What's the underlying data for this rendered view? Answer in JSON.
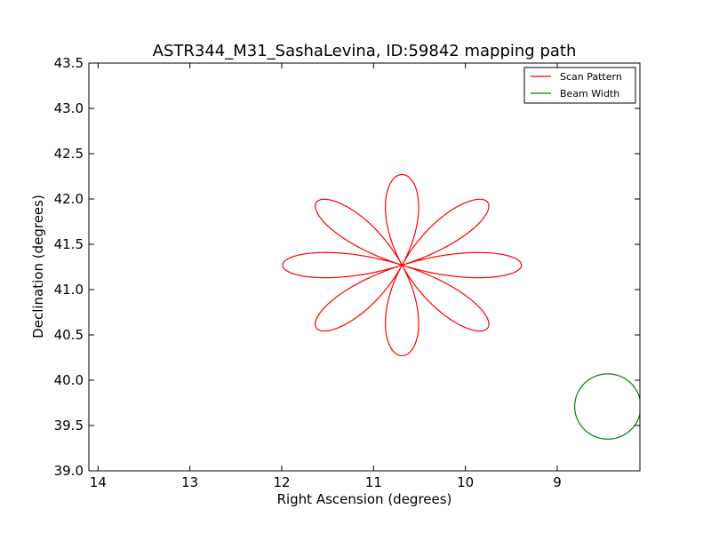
{
  "chart_data": {
    "type": "line",
    "title": "ASTR344_M31_SashaLevina, ID:59842 mapping path",
    "xlabel": "Right Ascension (degrees)",
    "ylabel": "Declination (degrees)",
    "xlim": [
      14.1,
      8.1
    ],
    "ylim": [
      39.0,
      43.5
    ],
    "x_ticks": [
      "14",
      "13",
      "12",
      "11",
      "10",
      "9"
    ],
    "y_ticks": [
      "39.0",
      "39.5",
      "40.0",
      "40.5",
      "41.0",
      "41.5",
      "42.0",
      "42.5",
      "43.0",
      "43.5"
    ],
    "x_tick_values": [
      14,
      13,
      12,
      11,
      10,
      9
    ],
    "y_tick_values": [
      39.0,
      39.5,
      40.0,
      40.5,
      41.0,
      41.5,
      42.0,
      42.5,
      43.0,
      43.5
    ],
    "legend_position": "top-right",
    "series": [
      {
        "name": "Scan Pattern",
        "kind": "rose",
        "color": "#ff0000",
        "center": [
          10.69,
          41.27
        ],
        "petals": 8,
        "ra_extent": 2.6,
        "dec_extent": 2.0
      },
      {
        "name": "Beam Width",
        "kind": "circle",
        "color": "#008000",
        "center": [
          8.45,
          39.71
        ],
        "radius": 0.36
      }
    ]
  }
}
